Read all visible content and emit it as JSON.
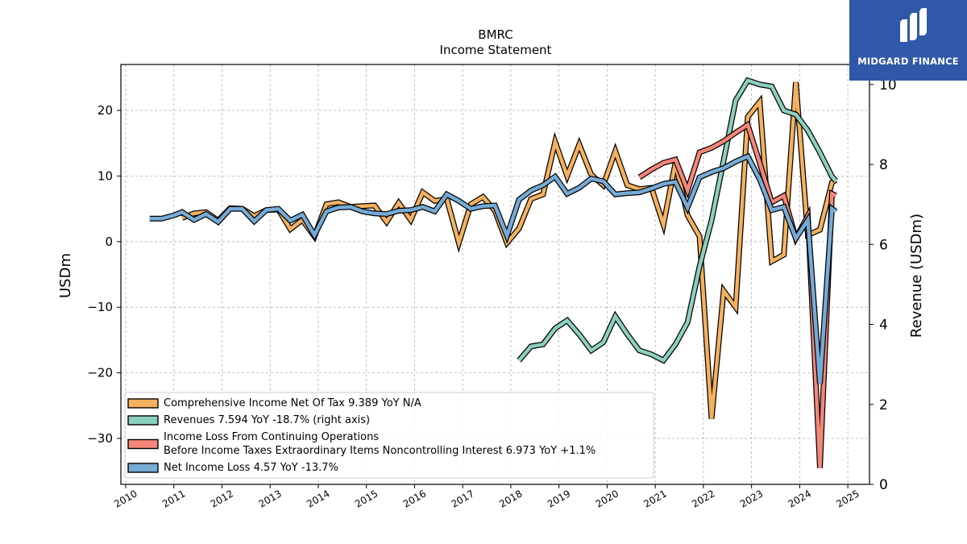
{
  "logo": {
    "text": "MIDGARD FINANCE",
    "bg_color": "#2f58a8"
  },
  "chart_data": {
    "type": "line",
    "title": "BMRC",
    "subtitle": "Income Statement",
    "ylabel": "USDm",
    "ylabel_right": "Revenue (USDm)",
    "ylim": [
      -37,
      27
    ],
    "ylim_right": [
      0,
      10.5
    ],
    "xlim": [
      2009.9,
      2025.45
    ],
    "x_ticks": [
      "2010",
      "2011",
      "2012",
      "2013",
      "2014",
      "2015",
      "2016",
      "2017",
      "2018",
      "2019",
      "2020",
      "2021",
      "2022",
      "2023",
      "2024",
      "2025"
    ],
    "y_ticks": [
      -30,
      -20,
      -10,
      0,
      10,
      20
    ],
    "y_ticks_right": [
      0,
      2,
      4,
      6,
      8,
      10
    ],
    "grid": true,
    "legend_position": "lower-left",
    "series": [
      {
        "name": "Comprehensive Income Net Of Tax  9.389 YoY N/A",
        "color": "#f4b160",
        "axis": "left",
        "x": [
          2011.17,
          2011.42,
          2011.67,
          2011.92,
          2012.17,
          2012.42,
          2012.67,
          2012.92,
          2013.17,
          2013.42,
          2013.67,
          2013.92,
          2014.17,
          2014.42,
          2014.67,
          2014.92,
          2015.17,
          2015.42,
          2015.67,
          2015.92,
          2016.17,
          2016.42,
          2016.67,
          2016.92,
          2017.17,
          2017.42,
          2017.67,
          2017.92,
          2018.17,
          2018.42,
          2018.67,
          2018.92,
          2019.17,
          2019.42,
          2019.67,
          2019.92,
          2020.17,
          2020.42,
          2020.67,
          2020.92,
          2021.17,
          2021.42,
          2021.67,
          2021.92,
          2022.17,
          2022.42,
          2022.67,
          2022.92,
          2023.17,
          2023.42,
          2023.67,
          2023.92,
          2024.17,
          2024.42,
          2024.67,
          2024.75
        ],
        "values": [
          3.6,
          4.3,
          4.5,
          3.2,
          5.1,
          5.0,
          3.9,
          4.8,
          4.9,
          1.9,
          3.3,
          0.8,
          5.7,
          6.0,
          5.3,
          5.4,
          5.5,
          3.0,
          5.9,
          3.3,
          7.5,
          6.2,
          6.5,
          -0.2,
          5.7,
          6.8,
          4.7,
          -0.2,
          2.0,
          6.5,
          7.2,
          15.2,
          10.0,
          14.8,
          10.2,
          8.6,
          13.8,
          8.6,
          8.0,
          8.2,
          2.6,
          12.0,
          4.0,
          0.8,
          -27.0,
          -7.5,
          -10.0,
          19.0,
          21.3,
          -3.0,
          -2.0,
          24.3,
          1.0,
          1.8,
          9.0,
          9.4
        ]
      },
      {
        "name": "Revenues  7.594 YoY -18.7% (right axis)",
        "color": "#8dcfbf",
        "axis": "right",
        "x": [
          2018.17,
          2018.42,
          2018.67,
          2018.92,
          2019.17,
          2019.42,
          2019.67,
          2019.92,
          2020.17,
          2020.42,
          2020.67,
          2020.92,
          2021.17,
          2021.42,
          2021.67,
          2021.92,
          2022.17,
          2022.42,
          2022.67,
          2022.92,
          2023.17,
          2023.42,
          2023.67,
          2023.92,
          2024.17,
          2024.42,
          2024.67,
          2024.75
        ],
        "values": [
          3.1,
          3.45,
          3.5,
          3.9,
          4.1,
          3.75,
          3.35,
          3.55,
          4.2,
          3.75,
          3.35,
          3.25,
          3.1,
          3.5,
          4.05,
          5.45,
          6.6,
          8.1,
          9.6,
          10.1,
          10.0,
          9.95,
          9.35,
          9.25,
          8.85,
          8.3,
          7.7,
          7.59
        ]
      },
      {
        "name": "Income Loss From Continuing Operations\nBefore Income Taxes Extraordinary Items Noncontrolling Interest  6.973 YoY +1.1%",
        "color": "#f4867a",
        "axis": "left",
        "x": [
          2020.67,
          2020.92,
          2021.17,
          2021.42,
          2021.67,
          2021.92,
          2022.17,
          2022.42,
          2022.67,
          2022.92,
          2023.17,
          2023.42,
          2023.67,
          2023.92,
          2024.17,
          2024.42,
          2024.67,
          2024.75
        ],
        "values": [
          9.8,
          11.0,
          12.0,
          12.5,
          7.8,
          13.6,
          14.3,
          15.3,
          16.6,
          17.8,
          12.0,
          6.0,
          7.0,
          0.5,
          3.9,
          -34.5,
          7.3,
          7.0
        ]
      },
      {
        "name": "Net Income Loss  4.57 YoY -13.7%",
        "color": "#76abd6",
        "axis": "left",
        "x": [
          2010.5,
          2010.75,
          2011.0,
          2011.17,
          2011.42,
          2011.67,
          2011.92,
          2012.17,
          2012.42,
          2012.67,
          2012.92,
          2013.17,
          2013.42,
          2013.67,
          2013.92,
          2014.17,
          2014.42,
          2014.67,
          2014.92,
          2015.17,
          2015.42,
          2015.67,
          2015.92,
          2016.17,
          2016.42,
          2016.67,
          2016.92,
          2017.17,
          2017.42,
          2017.67,
          2017.92,
          2018.17,
          2018.42,
          2018.67,
          2018.92,
          2019.17,
          2019.42,
          2019.67,
          2019.92,
          2020.17,
          2020.42,
          2020.67,
          2020.92,
          2021.17,
          2021.42,
          2021.67,
          2021.92,
          2022.17,
          2022.42,
          2022.67,
          2022.92,
          2023.17,
          2023.42,
          2023.67,
          2023.92,
          2024.17,
          2024.42,
          2024.67,
          2024.75
        ],
        "values": [
          3.5,
          3.5,
          4.0,
          4.5,
          3.3,
          4.2,
          3.0,
          5.0,
          5.0,
          3.1,
          4.8,
          5.0,
          3.2,
          4.1,
          1.0,
          4.6,
          5.2,
          5.3,
          4.6,
          4.3,
          4.2,
          4.7,
          4.8,
          5.3,
          4.6,
          7.2,
          6.2,
          5.0,
          5.4,
          5.5,
          0.9,
          6.4,
          7.8,
          8.6,
          9.9,
          7.3,
          8.2,
          9.6,
          9.2,
          7.2,
          7.4,
          7.5,
          8.1,
          8.8,
          9.1,
          5.2,
          9.8,
          10.6,
          11.2,
          12.2,
          13.0,
          9.5,
          4.8,
          5.3,
          0.5,
          3.3,
          -21.7,
          5.0,
          4.57
        ]
      }
    ]
  }
}
